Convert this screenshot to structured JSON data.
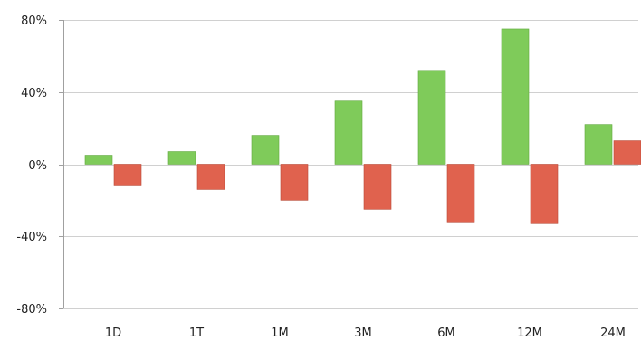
{
  "chart_data": {
    "type": "bar",
    "categories": [
      "1D",
      "1T",
      "1M",
      "3M",
      "6M",
      "12M",
      "24M"
    ],
    "series": [
      {
        "values": [
          5,
          7,
          16,
          35,
          52,
          75,
          22
        ],
        "color": "#7fcb5a"
      },
      {
        "values": [
          -12,
          -14,
          -20,
          -25,
          -32,
          -33,
          13
        ],
        "color": "#e0624e"
      }
    ],
    "ylim": [
      -80,
      80
    ],
    "yticks": [
      -80,
      -40,
      0,
      40,
      80
    ],
    "ytick_labels": [
      "-80%",
      "-40%",
      "0%",
      "40%",
      "80%"
    ],
    "grid": true,
    "legend": "none"
  }
}
